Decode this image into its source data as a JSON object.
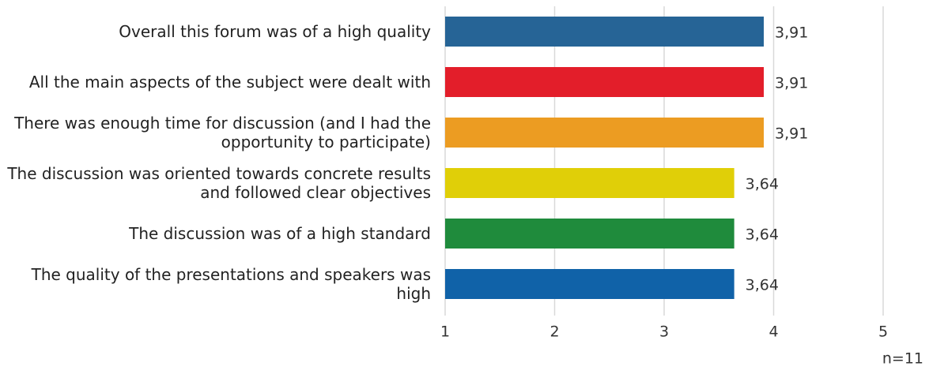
{
  "chart_data": {
    "type": "bar",
    "orientation": "horizontal",
    "categories": [
      "Overall this forum was of a high quality",
      "All the main aspects of the subject were dealt with",
      "There was enough time for discussion (and I had the opportunity to participate)",
      "The discussion was oriented towards concrete results and followed clear objectives",
      "The discussion was of a high standard",
      "The quality of the presentations and speakers was high"
    ],
    "values": [
      3.91,
      3.91,
      3.91,
      3.64,
      3.64,
      3.64
    ],
    "value_labels": [
      "3,91",
      "3,91",
      "3,91",
      "3,64",
      "3,64",
      "3,64"
    ],
    "colors": [
      "#266496",
      "#e31e2a",
      "#ec9c22",
      "#e0cf08",
      "#1f8b3c",
      "#1062a8"
    ],
    "xlim": [
      1,
      5
    ],
    "xticks": [
      1,
      2,
      3,
      4,
      5
    ],
    "grid": true,
    "annotation": "n=11"
  }
}
